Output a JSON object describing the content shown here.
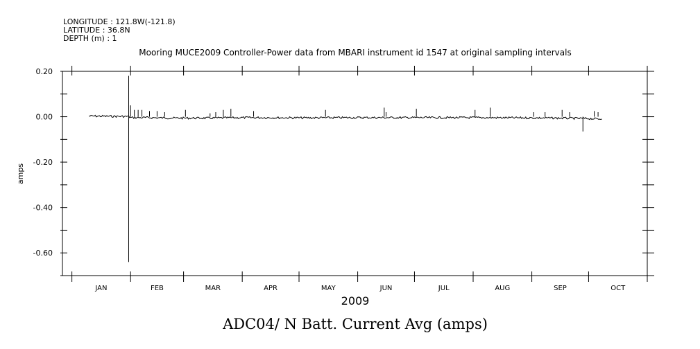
{
  "header": {
    "longitude": "LONGITUDE : 121.8W(-121.8)",
    "latitude": "LATITUDE : 36.8N",
    "depth": "DEPTH (m) : 1"
  },
  "chart_data": {
    "type": "line",
    "title": "Mooring MUCE2009 Controller-Power data from MBARI instrument id 1547 at original sampling intervals",
    "subtitle": "ADC04/ N Batt. Current Avg (amps)",
    "xlabel": "2009",
    "ylabel": "amps",
    "x_tick_labels": [
      "JAN",
      "FEB",
      "MAR",
      "APR",
      "MAY",
      "JUN",
      "JUL",
      "AUG",
      "SEP",
      "OCT"
    ],
    "y_tick_labels": [
      "0.20",
      "0.00",
      "-0.20",
      "-0.40",
      "-0.60"
    ],
    "y_ticks": [
      0.2,
      0.0,
      -0.2,
      -0.4,
      -0.6
    ],
    "xlim": [
      "2008-12-27",
      "2009-11-01"
    ],
    "ylim": [
      -0.7,
      0.2
    ],
    "grid": false,
    "series": [
      {
        "values": [
          [
            "2009-01-10",
            0.003
          ],
          [
            "2009-01-20",
            0.002
          ],
          [
            "2009-01-31",
            0.001
          ],
          [
            "2009-02-01",
            -0.004
          ],
          [
            "2009-02-10",
            -0.004
          ],
          [
            "2009-02-25",
            -0.006
          ],
          [
            "2009-03-15",
            -0.006
          ],
          [
            "2009-03-31",
            -0.004
          ],
          [
            "2009-04-15",
            -0.004
          ],
          [
            "2009-05-01",
            -0.005
          ],
          [
            "2009-05-31",
            -0.004
          ],
          [
            "2009-06-30",
            -0.004
          ],
          [
            "2009-07-31",
            -0.004
          ],
          [
            "2009-08-31",
            -0.005
          ],
          [
            "2009-09-15",
            -0.006
          ],
          [
            "2009-09-30",
            -0.008
          ],
          [
            "2009-10-08",
            -0.01
          ]
        ],
        "spikes": [
          [
            "2009-01-31",
            0.18
          ],
          [
            "2009-01-31",
            -0.64
          ],
          [
            "2009-02-01",
            0.05
          ],
          [
            "2009-02-03",
            0.03
          ],
          [
            "2009-02-05",
            0.03
          ],
          [
            "2009-02-07",
            0.03
          ],
          [
            "2009-02-11",
            0.025
          ],
          [
            "2009-02-15",
            0.025
          ],
          [
            "2009-02-19",
            0.02
          ],
          [
            "2009-03-02",
            0.03
          ],
          [
            "2009-03-15",
            0.015
          ],
          [
            "2009-03-18",
            0.02
          ],
          [
            "2009-03-22",
            0.03
          ],
          [
            "2009-03-26",
            0.035
          ],
          [
            "2009-04-07",
            0.025
          ],
          [
            "2009-05-15",
            0.03
          ],
          [
            "2009-06-15",
            0.04
          ],
          [
            "2009-06-16",
            0.02
          ],
          [
            "2009-07-02",
            0.035
          ],
          [
            "2009-08-02",
            0.03
          ],
          [
            "2009-08-10",
            0.04
          ],
          [
            "2009-09-02",
            0.02
          ],
          [
            "2009-09-08",
            0.02
          ],
          [
            "2009-09-17",
            0.03
          ],
          [
            "2009-09-21",
            0.02
          ],
          [
            "2009-09-28",
            -0.065
          ],
          [
            "2009-10-04",
            0.025
          ],
          [
            "2009-10-06",
            0.02
          ]
        ]
      }
    ]
  }
}
